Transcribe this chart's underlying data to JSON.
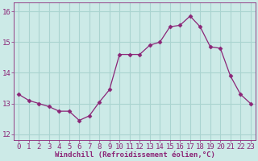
{
  "x": [
    0,
    1,
    2,
    3,
    4,
    5,
    6,
    7,
    8,
    9,
    10,
    11,
    12,
    13,
    14,
    15,
    16,
    17,
    18,
    19,
    20,
    21,
    22,
    23
  ],
  "y": [
    13.3,
    13.1,
    13.0,
    12.9,
    12.75,
    12.75,
    12.45,
    12.6,
    13.05,
    13.45,
    14.6,
    14.6,
    14.6,
    14.9,
    15.0,
    15.5,
    15.55,
    15.85,
    15.5,
    14.85,
    14.8,
    13.9,
    13.3,
    13.0
  ],
  "line_color": "#8b2577",
  "marker": "D",
  "marker_size": 2.5,
  "background_color": "#cceae7",
  "grid_color": "#aad4d0",
  "xlabel": "Windchill (Refroidissement éolien,°C)",
  "xlabel_fontsize": 6.5,
  "tick_label_color": "#8b2577",
  "tick_label_fontsize": 6.5,
  "ylim": [
    11.8,
    16.3
  ],
  "xlim": [
    -0.5,
    23.5
  ],
  "yticks": [
    12,
    13,
    14,
    15,
    16
  ],
  "xticks": [
    0,
    1,
    2,
    3,
    4,
    5,
    6,
    7,
    8,
    9,
    10,
    11,
    12,
    13,
    14,
    15,
    16,
    17,
    18,
    19,
    20,
    21,
    22,
    23
  ]
}
